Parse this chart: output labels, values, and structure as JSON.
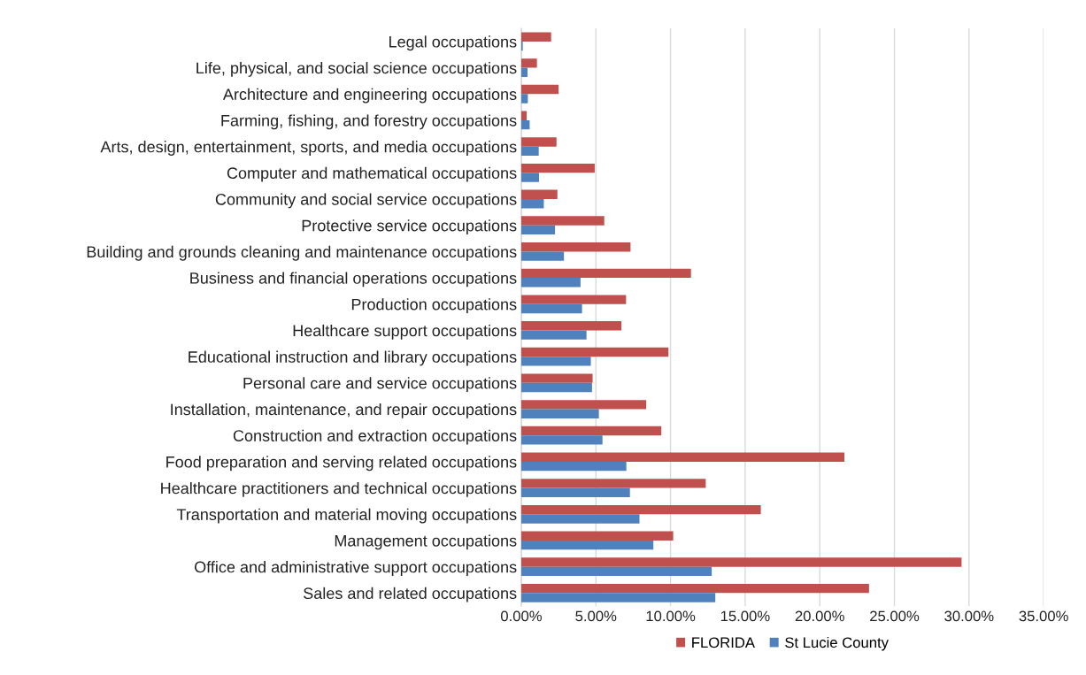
{
  "chart_data": {
    "type": "bar",
    "orientation": "horizontal",
    "categories": [
      "Legal occupations",
      "Life, physical, and social science occupations",
      "Architecture and engineering occupations",
      "Farming, fishing, and forestry occupations",
      "Arts, design, entertainment, sports, and media occupations",
      "Computer and mathematical occupations",
      "Community and social service occupations",
      "Protective service occupations",
      "Building and grounds cleaning and maintenance occupations",
      "Business and financial operations occupations",
      "Production occupations",
      "Healthcare support occupations",
      "Educational instruction and library occupations",
      "Personal care and service occupations",
      "Installation, maintenance, and repair occupations",
      "Construction and extraction occupations",
      "Food preparation and serving related occupations",
      "Healthcare practitioners and technical occupations",
      "Transportation and material moving occupations",
      "Management occupations",
      "Office and administrative support occupations",
      "Sales and related occupations"
    ],
    "series": [
      {
        "name": "FLORIDA",
        "color": "#c0504d",
        "values": [
          2.0,
          1.05,
          2.5,
          0.36,
          2.36,
          4.92,
          2.42,
          5.56,
          7.32,
          11.37,
          7.02,
          6.71,
          9.86,
          4.78,
          8.37,
          9.38,
          21.65,
          12.36,
          16.05,
          10.18,
          29.5,
          23.3
        ]
      },
      {
        "name": "St Lucie County",
        "color": "#4f81bd",
        "values": [
          0.1,
          0.42,
          0.44,
          0.56,
          1.17,
          1.19,
          1.51,
          2.26,
          2.86,
          3.97,
          4.07,
          4.37,
          4.66,
          4.74,
          5.2,
          5.44,
          7.04,
          7.28,
          7.92,
          8.85,
          12.76,
          13.0
        ]
      }
    ],
    "xlim": [
      0,
      35
    ],
    "xticks": [
      {
        "value": 0,
        "label": "0.00%"
      },
      {
        "value": 5,
        "label": "5.00%"
      },
      {
        "value": 10,
        "label": "10.00%"
      },
      {
        "value": 15,
        "label": "15.00%"
      },
      {
        "value": 20,
        "label": "20.00%"
      },
      {
        "value": 25,
        "label": "25.00%"
      },
      {
        "value": 30,
        "label": "30.00%"
      },
      {
        "value": 35,
        "label": "35.00%"
      }
    ],
    "grid": "x",
    "legend": "bottom"
  }
}
